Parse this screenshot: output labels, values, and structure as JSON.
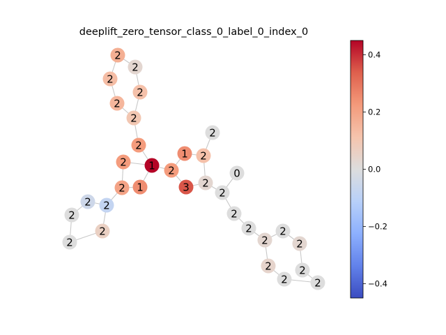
{
  "figure": {
    "title": "deeplift_zero_tensor_class_0_label_0_index_0"
  },
  "colormap": {
    "name": "coolwarm",
    "min": -0.45,
    "max": 0.45,
    "ticks": [
      {
        "value": 0.4,
        "label": "0.4"
      },
      {
        "value": 0.2,
        "label": "0.2"
      },
      {
        "value": 0.0,
        "label": "0.0"
      },
      {
        "value": -0.2,
        "label": "−0.2"
      },
      {
        "value": -0.4,
        "label": "−0.4"
      }
    ]
  },
  "graph": {
    "nodes": [
      {
        "id": "n0",
        "label": "2",
        "value": 0.17
      },
      {
        "id": "n1",
        "label": "2",
        "value": 0.03
      },
      {
        "id": "n2",
        "label": "2",
        "value": 0.13
      },
      {
        "id": "n3",
        "label": "2",
        "value": 0.12
      },
      {
        "id": "n4",
        "label": "2",
        "value": 0.15
      },
      {
        "id": "n5",
        "label": "2",
        "value": 0.1
      },
      {
        "id": "n6",
        "label": "2",
        "value": 0.22
      },
      {
        "id": "n7",
        "label": "2",
        "value": 0.22
      },
      {
        "id": "n8",
        "label": "1",
        "value": 0.45
      },
      {
        "id": "n9",
        "label": "1",
        "value": 0.25
      },
      {
        "id": "n10",
        "label": "2",
        "value": 0.12
      },
      {
        "id": "n11",
        "label": "2",
        "value": 0.0
      },
      {
        "id": "n12",
        "label": "2",
        "value": 0.22
      },
      {
        "id": "n13",
        "label": "0",
        "value": 0.0
      },
      {
        "id": "n14",
        "label": "2",
        "value": 0.2
      },
      {
        "id": "n15",
        "label": "1",
        "value": 0.25
      },
      {
        "id": "n16",
        "label": "3",
        "value": 0.35
      },
      {
        "id": "n17",
        "label": "2",
        "value": 0.03
      },
      {
        "id": "n18",
        "label": "2",
        "value": 0.0
      },
      {
        "id": "n19",
        "label": "2",
        "value": -0.08
      },
      {
        "id": "n20",
        "label": "2",
        "value": 0.0
      },
      {
        "id": "n21",
        "label": "2",
        "value": -0.05
      },
      {
        "id": "n22",
        "label": "2",
        "value": 0.0
      },
      {
        "id": "n23",
        "label": "2",
        "value": 0.03
      },
      {
        "id": "n24",
        "label": "2",
        "value": 0.0
      },
      {
        "id": "n25",
        "label": "2",
        "value": 0.04
      },
      {
        "id": "n26",
        "label": "2",
        "value": 0.06
      },
      {
        "id": "n27",
        "label": "2",
        "value": 0.0
      },
      {
        "id": "n28",
        "label": "2",
        "value": 0.0
      },
      {
        "id": "n29",
        "label": "2",
        "value": 0.03
      },
      {
        "id": "n30",
        "label": "2",
        "value": 0.0
      },
      {
        "id": "n31",
        "label": "2",
        "value": 0.0
      },
      {
        "id": "n32",
        "label": "2",
        "value": 0.0
      }
    ],
    "edges": [
      [
        "n0",
        "n1"
      ],
      [
        "n0",
        "n2"
      ],
      [
        "n1",
        "n3"
      ],
      [
        "n2",
        "n4"
      ],
      [
        "n3",
        "n5"
      ],
      [
        "n4",
        "n5"
      ],
      [
        "n5",
        "n6"
      ],
      [
        "n6",
        "n8"
      ],
      [
        "n7",
        "n8"
      ],
      [
        "n7",
        "n14"
      ],
      [
        "n8",
        "n12"
      ],
      [
        "n12",
        "n9"
      ],
      [
        "n9",
        "n10"
      ],
      [
        "n11",
        "n10"
      ],
      [
        "n10",
        "n17"
      ],
      [
        "n12",
        "n16"
      ],
      [
        "n16",
        "n17"
      ],
      [
        "n17",
        "n18"
      ],
      [
        "n13",
        "n18"
      ],
      [
        "n18",
        "n20"
      ],
      [
        "n20",
        "n22"
      ],
      [
        "n22",
        "n23"
      ],
      [
        "n23",
        "n24"
      ],
      [
        "n23",
        "n25"
      ],
      [
        "n24",
        "n29"
      ],
      [
        "n25",
        "n30"
      ],
      [
        "n29",
        "n31"
      ],
      [
        "n30",
        "n32"
      ],
      [
        "n31",
        "n32"
      ],
      [
        "n14",
        "n15"
      ],
      [
        "n15",
        "n8"
      ],
      [
        "n14",
        "n19"
      ],
      [
        "n19",
        "n21"
      ],
      [
        "n19",
        "n26"
      ],
      [
        "n21",
        "n27"
      ],
      [
        "n26",
        "n28"
      ],
      [
        "n27",
        "n28"
      ]
    ]
  }
}
